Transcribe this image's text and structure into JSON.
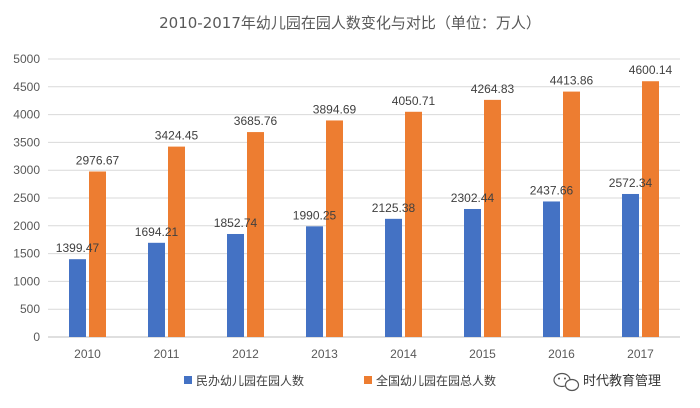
{
  "chart_data": {
    "type": "bar",
    "title": "2010-2017年幼儿园在园人数变化与对比（单位：万人）",
    "categories": [
      "2010",
      "2011",
      "2012",
      "2013",
      "2014",
      "2015",
      "2016",
      "2017"
    ],
    "series": [
      {
        "name": "民办幼儿园在园人数",
        "color": "#4472C4",
        "values": [
          1399.47,
          1694.21,
          1852.74,
          1990.25,
          2125.38,
          2302.44,
          2437.66,
          2572.34
        ],
        "labels": [
          "1399.47",
          "1694.21",
          "1852.74",
          "1990.25",
          "2125.38",
          "2302.44",
          "2437.66",
          "2572.34"
        ]
      },
      {
        "name": "全国幼儿园在园总人数",
        "color": "#ED7D31",
        "values": [
          2976.67,
          3424.45,
          3685.76,
          3894.69,
          4050.71,
          4264.83,
          4413.86,
          4600.14
        ],
        "labels": [
          "2976.67",
          "3424.45",
          "3685.76",
          "3894.69",
          "4050.71",
          "4264.83",
          "4413.86",
          "4600.14"
        ]
      }
    ],
    "ylim": [
      0,
      5000
    ],
    "yticks": [
      0,
      500,
      1000,
      1500,
      2000,
      2500,
      3000,
      3500,
      4000,
      4500,
      5000
    ],
    "grid": true,
    "legend_position": "bottom"
  },
  "watermark": {
    "text": "时代教育管理",
    "icon": "wechat-icon"
  }
}
